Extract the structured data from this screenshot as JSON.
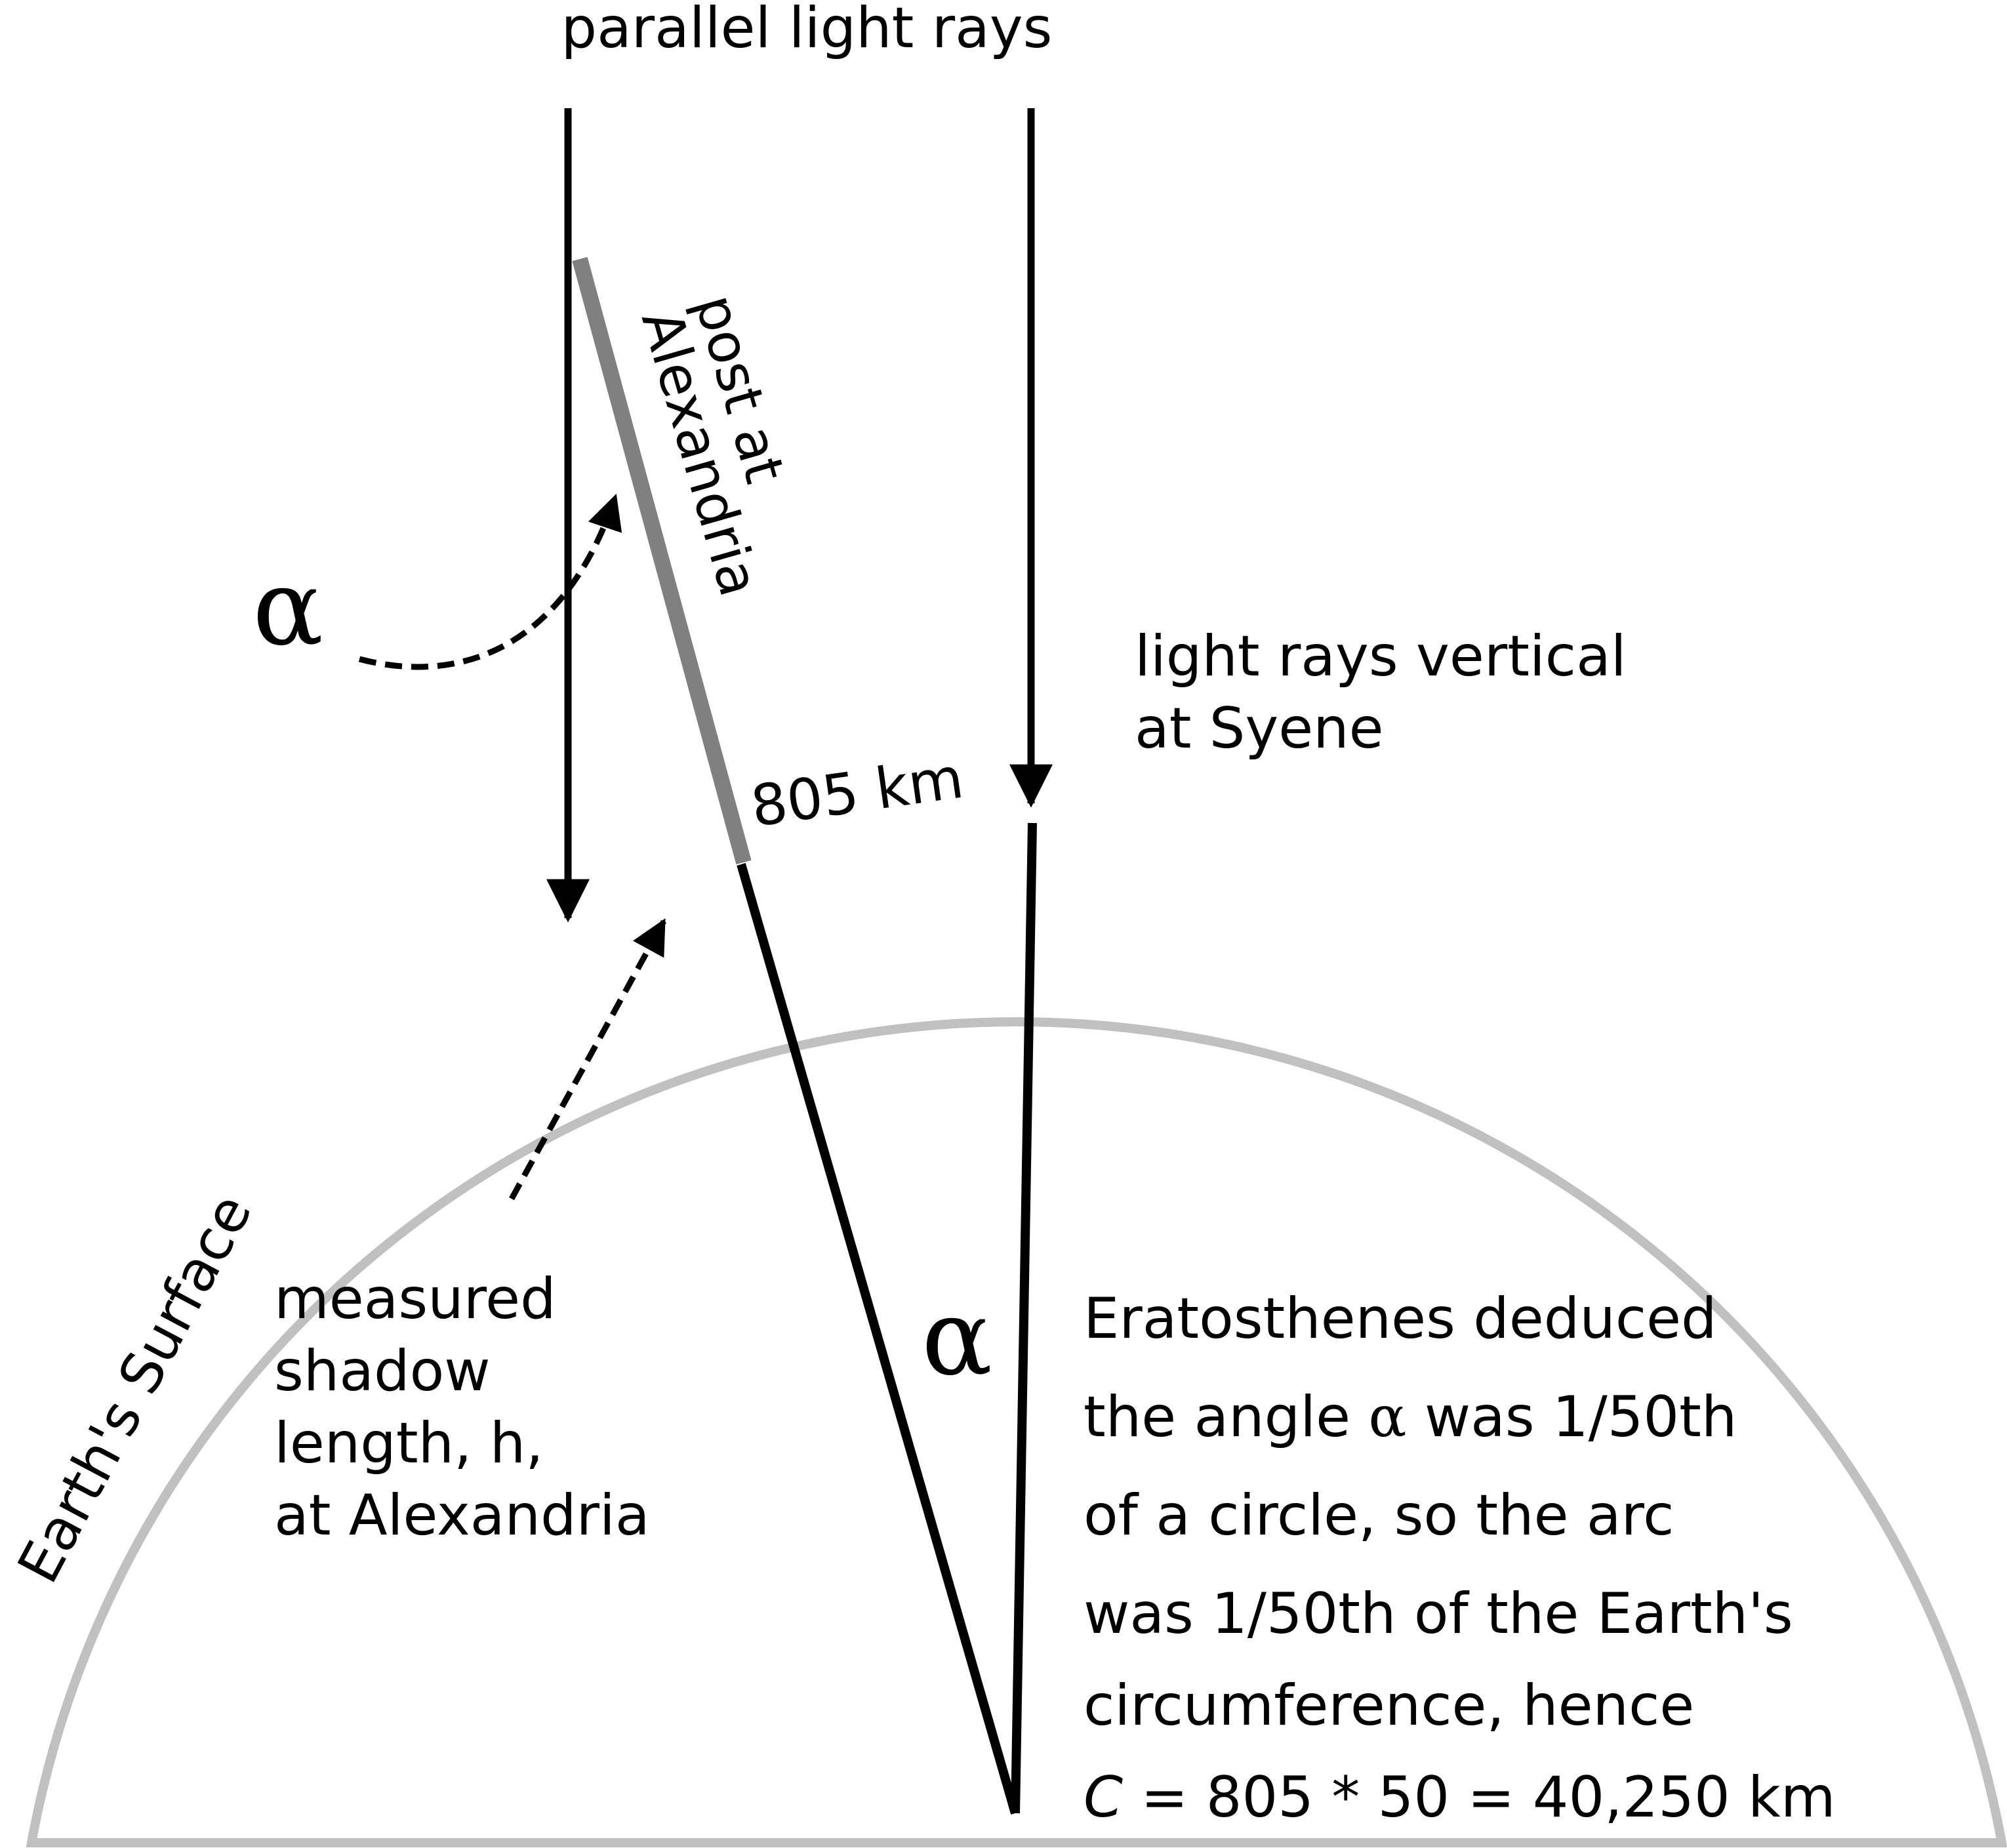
{
  "diagram": {
    "labels": {
      "parallel_rays": "parallel light rays",
      "post_line1": "post at",
      "post_line2": "Alexandria",
      "alpha_symbol": "α",
      "syene_line1": "light rays vertical",
      "syene_line2": "at Syene",
      "arc_distance": "805 km",
      "shadow_line1": "measured",
      "shadow_line2": "shadow",
      "shadow_line3": "length, h,",
      "shadow_line4": "at Alexandria",
      "earth_surface": "Earth's Surface",
      "center_alpha": "α"
    },
    "explanation": {
      "line1": "Eratosthenes  deduced",
      "line2_pre": "the angle ",
      "line2_alpha": "α",
      "line2_post": " was 1/50th",
      "line3": "of a circle, so the arc",
      "line4": "was 1/50th of the Earth's",
      "line5": "circumference, hence",
      "line6_var": "C",
      "line6_rest": " = 805 * 50 = 40,250 km"
    },
    "colors": {
      "ink": "#000000",
      "earth_surface": "#c0c0c0",
      "post": "#808080"
    }
  }
}
